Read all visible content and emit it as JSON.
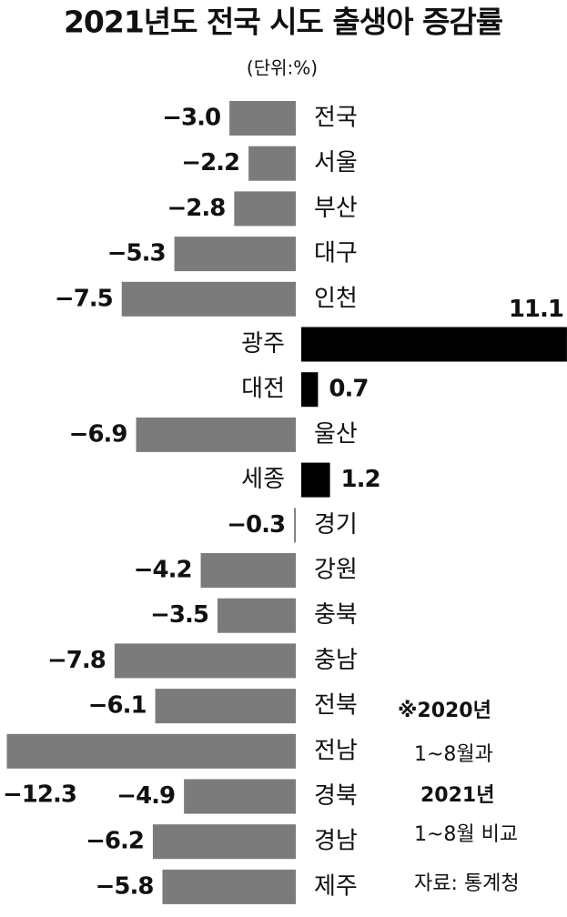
{
  "chart_data": {
    "type": "bar",
    "orientation": "horizontal",
    "title": "2021년도 전국 시도 출생아 증감률",
    "subtitle": "(단위:%)",
    "categories": [
      "전국",
      "서울",
      "부산",
      "대구",
      "인천",
      "광주",
      "대전",
      "울산",
      "세종",
      "경기",
      "강원",
      "충북",
      "충남",
      "전북",
      "전남",
      "경북",
      "경남",
      "제주"
    ],
    "values": [
      -3.0,
      -2.2,
      -2.8,
      -5.3,
      -7.5,
      11.1,
      0.7,
      -6.9,
      1.2,
      -0.3,
      -4.2,
      -3.5,
      -7.8,
      -6.1,
      -12.3,
      -4.9,
      -6.2,
      -5.8
    ],
    "value_labels": [
      "−3.0",
      "−2.2",
      "−2.8",
      "−5.3",
      "−7.5",
      "11.1",
      "0.7",
      "−6.9",
      "1.2",
      "−0.3",
      "−4.2",
      "−3.5",
      "−7.8",
      "−6.1",
      "−12.3",
      "−4.9",
      "−6.2",
      "−5.8"
    ],
    "negative_color": "#7b7b7b",
    "positive_color": "#000000",
    "note": [
      "※2020년",
      "1~8월과",
      "2021년",
      "1~8월 비교"
    ],
    "source": "자료: 통계청"
  }
}
